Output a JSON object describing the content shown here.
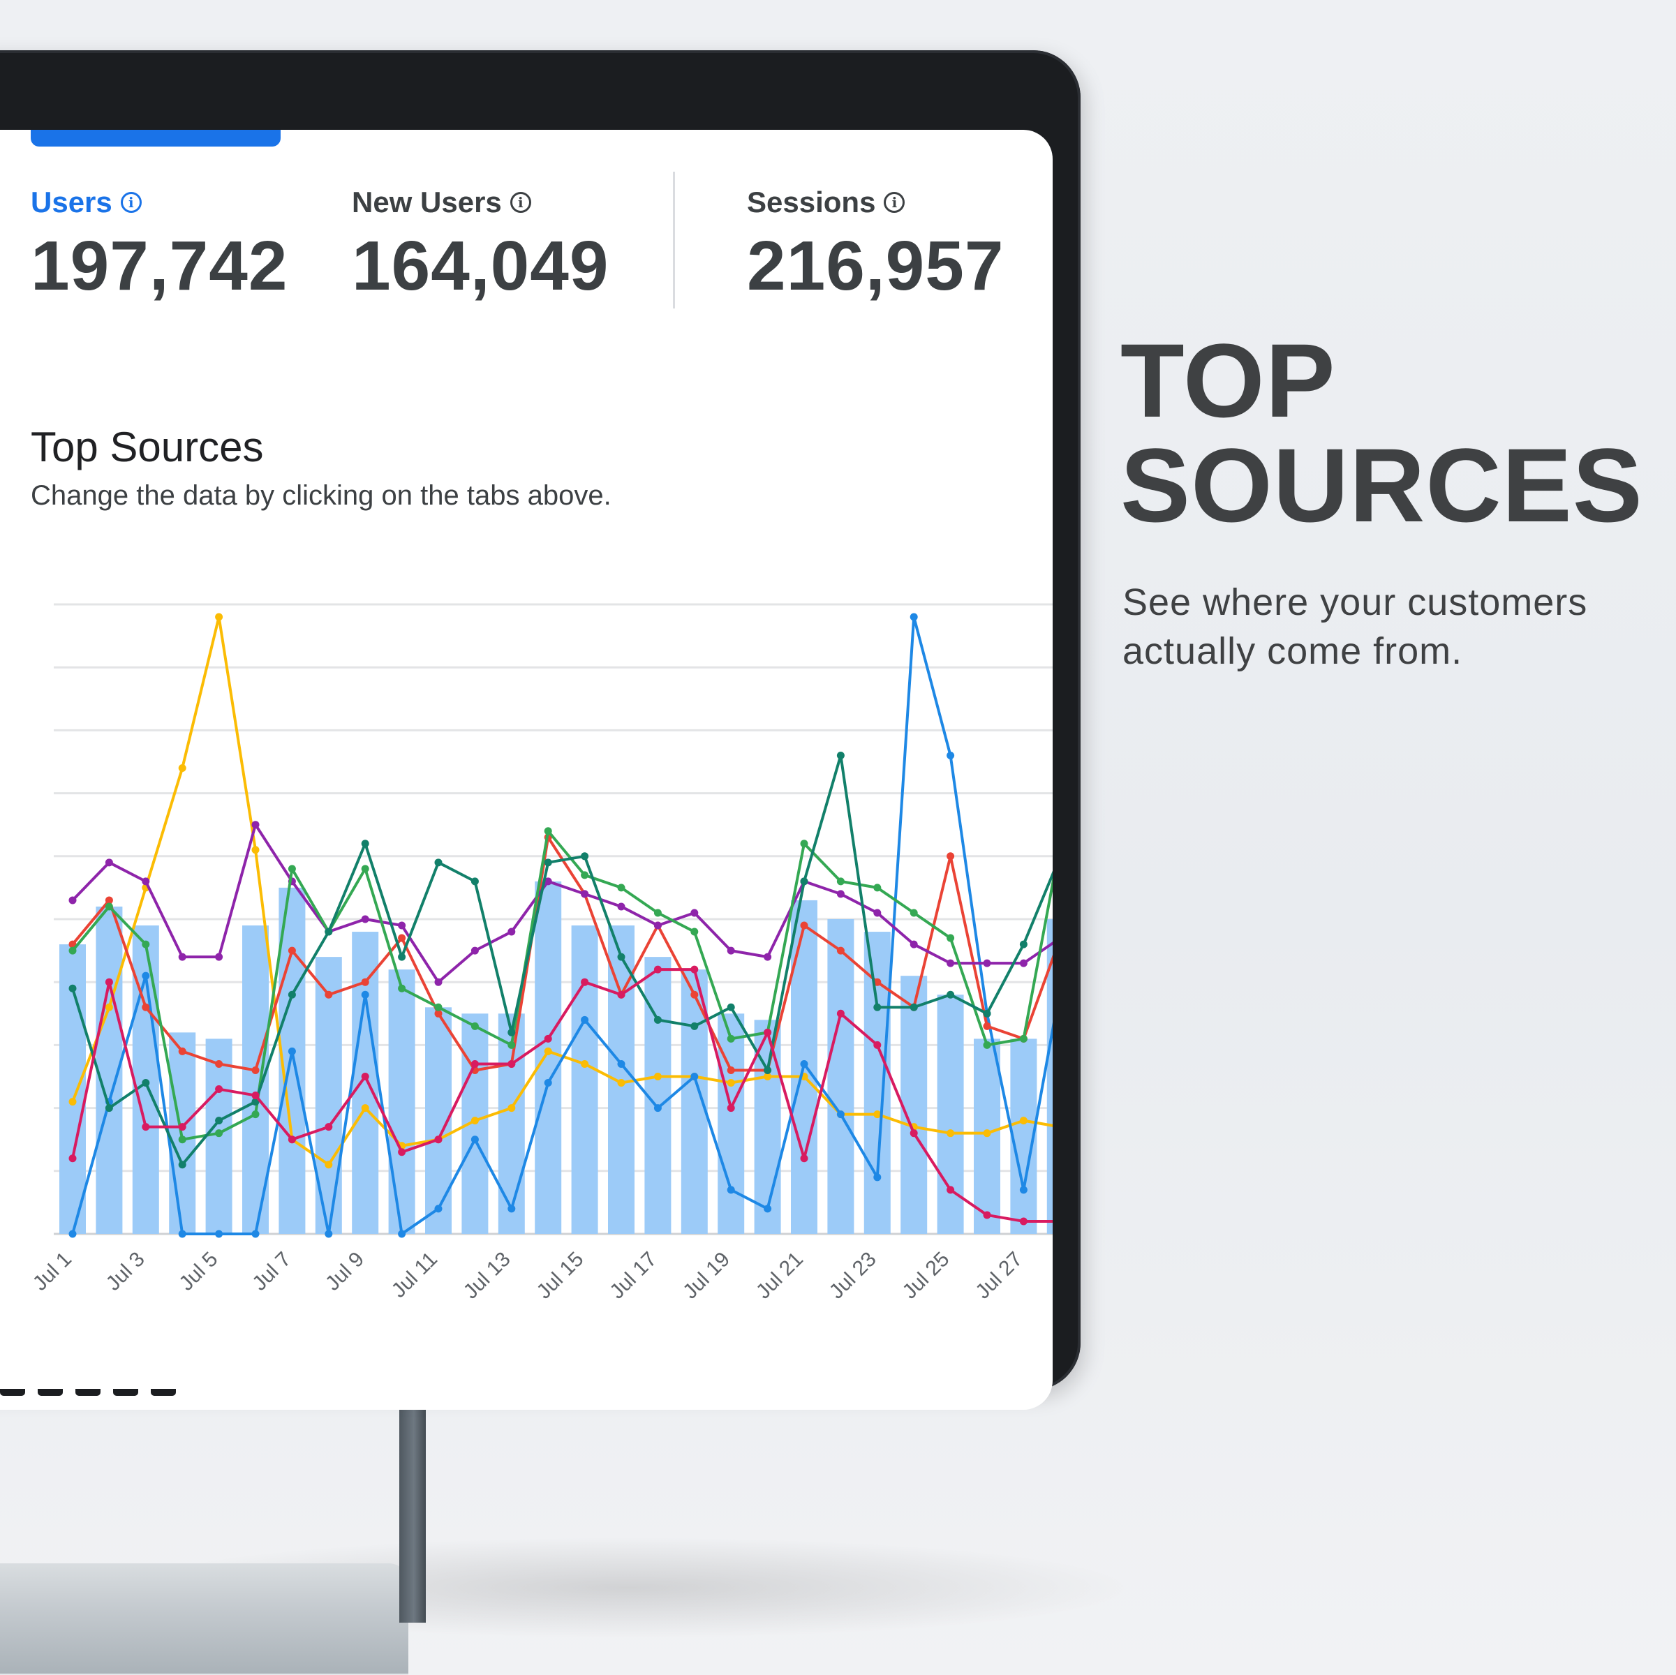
{
  "metrics": [
    {
      "label": "Users",
      "value": "197,742",
      "active": true
    },
    {
      "label": "New Users",
      "value": "164,049",
      "active": false
    },
    {
      "label": "Sessions",
      "value": "216,957",
      "active": false
    }
  ],
  "section": {
    "title": "Top Sources",
    "subtitle": "Change the data by clicking on the tabs above."
  },
  "promo": {
    "title_line1": "TOP",
    "title_line2": "SOURCES",
    "subtitle_line1": "See where your customers",
    "subtitle_line2": "actually come from."
  },
  "colors": {
    "accent": "#1a73e8",
    "bars": "#9ccbf8",
    "grid": "#e3e4e6",
    "text": "#3c4043"
  },
  "chart_data": {
    "type": "line",
    "x_tick_labels": [
      "Jul 1",
      "Jul 3",
      "Jul 5",
      "Jul 7",
      "Jul 9",
      "Jul 11",
      "Jul 13",
      "Jul 15",
      "Jul 17",
      "Jul 19",
      "Jul 21",
      "Jul 23",
      "Jul 25",
      "Jul 27"
    ],
    "x": [
      "Jul 1",
      "Jul 2",
      "Jul 3",
      "Jul 4",
      "Jul 5",
      "Jul 6",
      "Jul 7",
      "Jul 8",
      "Jul 9",
      "Jul 10",
      "Jul 11",
      "Jul 12",
      "Jul 13",
      "Jul 14",
      "Jul 15",
      "Jul 16",
      "Jul 17",
      "Jul 18",
      "Jul 19",
      "Jul 20",
      "Jul 21",
      "Jul 22",
      "Jul 23",
      "Jul 24",
      "Jul 25",
      "Jul 26",
      "Jul 27",
      "Jul 28"
    ],
    "ylim": [
      0,
      10
    ],
    "grid": true,
    "bars": [
      4.6,
      5.2,
      4.9,
      3.2,
      3.1,
      4.9,
      5.5,
      4.4,
      4.8,
      4.2,
      3.6,
      3.5,
      3.5,
      5.6,
      4.9,
      4.9,
      4.4,
      4.2,
      3.5,
      3.4,
      5.3,
      5.0,
      4.8,
      4.1,
      3.8,
      3.1,
      3.1,
      5.0
    ],
    "series": [
      {
        "color": "#fbbc04",
        "values": [
          2.1,
          3.6,
          5.5,
          7.4,
          9.8,
          6.1,
          1.5,
          1.1,
          2.0,
          1.4,
          1.5,
          1.8,
          2.0,
          2.9,
          2.7,
          2.4,
          2.5,
          2.5,
          2.4,
          2.5,
          2.5,
          1.9,
          1.9,
          1.7,
          1.6,
          1.6,
          1.8,
          1.7
        ]
      },
      {
        "color": "#1e88e5",
        "values": [
          0.0,
          2.1,
          4.1,
          0.0,
          0.0,
          0.0,
          2.9,
          0.0,
          3.8,
          0.0,
          0.4,
          1.5,
          0.4,
          2.4,
          3.4,
          2.7,
          2.0,
          2.5,
          0.7,
          0.4,
          2.7,
          1.9,
          0.9,
          9.8,
          7.6,
          3.5,
          0.7,
          3.9
        ]
      },
      {
        "color": "#ea4335",
        "values": [
          4.6,
          5.3,
          3.6,
          2.9,
          2.7,
          2.6,
          4.5,
          3.8,
          4.0,
          4.7,
          3.5,
          2.6,
          2.7,
          6.3,
          5.4,
          3.8,
          4.9,
          3.8,
          2.6,
          2.6,
          4.9,
          4.5,
          4.0,
          3.6,
          6.0,
          3.3,
          3.1,
          4.7
        ]
      },
      {
        "color": "#8e24aa",
        "values": [
          5.3,
          5.9,
          5.6,
          4.4,
          4.4,
          6.5,
          5.6,
          4.8,
          5.0,
          4.9,
          4.0,
          4.5,
          4.8,
          5.6,
          5.4,
          5.2,
          4.9,
          5.1,
          4.5,
          4.4,
          5.6,
          5.4,
          5.1,
          4.6,
          4.3,
          4.3,
          4.3,
          4.7
        ]
      },
      {
        "color": "#34a853",
        "values": [
          4.5,
          5.2,
          4.6,
          1.5,
          1.6,
          1.9,
          5.8,
          4.8,
          5.8,
          3.9,
          3.6,
          3.3,
          3.0,
          6.4,
          5.7,
          5.5,
          5.1,
          4.8,
          3.1,
          3.2,
          6.2,
          5.6,
          5.5,
          5.1,
          4.7,
          3.0,
          3.1,
          6.2
        ]
      },
      {
        "color": "#12806a",
        "values": [
          3.9,
          2.0,
          2.4,
          1.1,
          1.8,
          2.1,
          3.8,
          4.8,
          6.2,
          4.4,
          5.9,
          5.6,
          3.2,
          5.9,
          6.0,
          4.4,
          3.4,
          3.3,
          3.6,
          2.6,
          5.6,
          7.6,
          3.6,
          3.6,
          3.8,
          3.5,
          4.6,
          6.0
        ]
      },
      {
        "color": "#d81b60",
        "values": [
          1.2,
          4.0,
          1.7,
          1.7,
          2.3,
          2.2,
          1.5,
          1.7,
          2.5,
          1.3,
          1.5,
          2.7,
          2.7,
          3.1,
          4.0,
          3.8,
          4.2,
          4.2,
          2.0,
          3.2,
          1.2,
          3.5,
          3.0,
          1.6,
          0.7,
          0.3,
          0.2,
          0.2
        ]
      }
    ]
  }
}
